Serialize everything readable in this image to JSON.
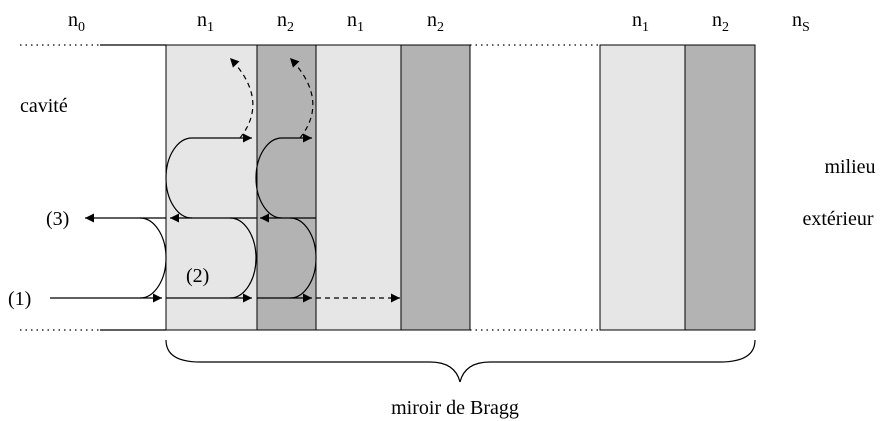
{
  "layers": [
    {
      "base": "n",
      "sub": "0"
    },
    {
      "base": "n",
      "sub": "1"
    },
    {
      "base": "n",
      "sub": "2"
    },
    {
      "base": "n",
      "sub": "1"
    },
    {
      "base": "n",
      "sub": "2"
    },
    {
      "base": "n",
      "sub": "1"
    },
    {
      "base": "n",
      "sub": "2"
    },
    {
      "base": "n",
      "sub": "S"
    }
  ],
  "left_label": "cavité",
  "right_label": [
    "milieu",
    "extérieur"
  ],
  "rays": [
    "(1)",
    "(2)",
    "(3)"
  ],
  "caption": "miroir de Bragg"
}
